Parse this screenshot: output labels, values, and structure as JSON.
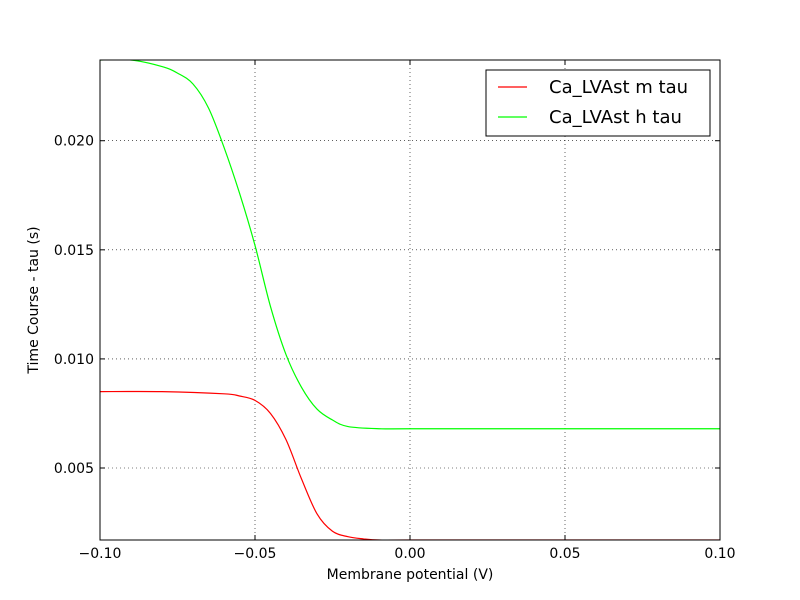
{
  "chart_data": {
    "type": "line",
    "title": "",
    "xlabel": "Membrane potential (V)",
    "ylabel": "Time Course - tau (s)",
    "xlim": [
      -0.1,
      0.1
    ],
    "ylim": [
      0.0017,
      0.0237
    ],
    "x_ticks": [
      -0.1,
      -0.05,
      0.0,
      0.05,
      0.1
    ],
    "x_tick_labels": [
      "−0.10",
      "−0.05",
      "0.00",
      "0.05",
      "0.10"
    ],
    "y_ticks": [
      0.005,
      0.01,
      0.015,
      0.02
    ],
    "y_tick_labels": [
      "0.005",
      "0.010",
      "0.015",
      "0.020"
    ],
    "grid": true,
    "legend_position": "top-right",
    "series": [
      {
        "name": "Ca_LVAst m tau",
        "color": "#ff0000",
        "x": [
          -0.1,
          -0.08,
          -0.06,
          -0.055,
          -0.05,
          -0.045,
          -0.04,
          -0.035,
          -0.03,
          -0.025,
          -0.02,
          -0.015,
          -0.01,
          0.0,
          0.05,
          0.1
        ],
        "y": [
          0.0085,
          0.0085,
          0.0084,
          0.0083,
          0.0081,
          0.0075,
          0.0063,
          0.0045,
          0.0029,
          0.0021,
          0.00185,
          0.00175,
          0.0017,
          0.0017,
          0.0017,
          0.0017
        ]
      },
      {
        "name": "Ca_LVAst h tau",
        "color": "#00ff00",
        "x": [
          -0.1,
          -0.09,
          -0.08,
          -0.075,
          -0.07,
          -0.065,
          -0.06,
          -0.055,
          -0.05,
          -0.045,
          -0.04,
          -0.035,
          -0.03,
          -0.025,
          -0.02,
          -0.01,
          0.0,
          0.05,
          0.1
        ],
        "y": [
          0.0237,
          0.0237,
          0.0234,
          0.0231,
          0.0226,
          0.0215,
          0.0197,
          0.0176,
          0.0152,
          0.0124,
          0.0102,
          0.0087,
          0.0077,
          0.0072,
          0.0069,
          0.0068,
          0.0068,
          0.0068,
          0.0068
        ]
      }
    ]
  }
}
